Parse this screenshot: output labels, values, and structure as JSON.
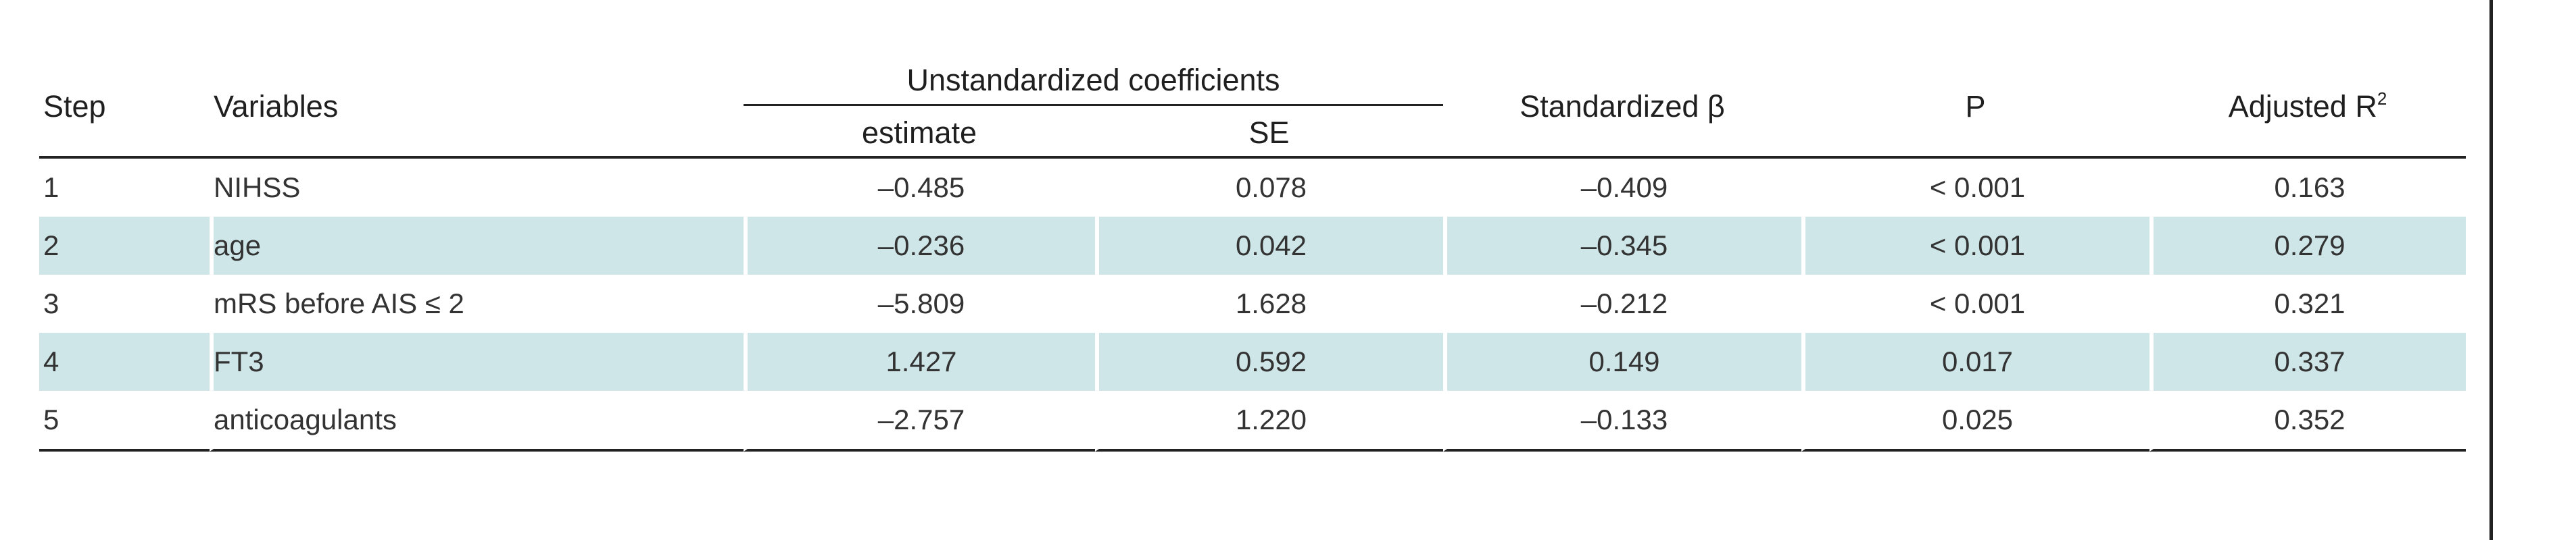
{
  "table": {
    "headers": {
      "step": "Step",
      "variables": "Variables",
      "unstandardized_group": "Unstandardized coefficients",
      "estimate": "estimate",
      "se": "SE",
      "standardized_beta": "Standardized β",
      "p": "P",
      "adjusted_r2_base": "Adjusted R",
      "adjusted_r2_sup": "2"
    },
    "rows": [
      {
        "step": "1",
        "variable": "NIHSS",
        "estimate": "–0.485",
        "se": "0.078",
        "beta": "–0.409",
        "p": "< 0.001",
        "r2": "0.163"
      },
      {
        "step": "2",
        "variable": "age",
        "estimate": "–0.236",
        "se": "0.042",
        "beta": "–0.345",
        "p": "< 0.001",
        "r2": "0.279"
      },
      {
        "step": "3",
        "variable": "mRS before AIS ≤ 2",
        "estimate": "–5.809",
        "se": "1.628",
        "beta": "–0.212",
        "p": "< 0.001",
        "r2": "0.321"
      },
      {
        "step": "4",
        "variable": "FT3",
        "estimate": "1.427",
        "se": "0.592",
        "beta": "0.149",
        "p": "0.017",
        "r2": "0.337"
      },
      {
        "step": "5",
        "variable": "anticoagulants",
        "estimate": "–2.757",
        "se": "1.220",
        "beta": "–0.133",
        "p": "0.025",
        "r2": "0.352"
      }
    ],
    "shade_color": "#cfe6e8"
  }
}
